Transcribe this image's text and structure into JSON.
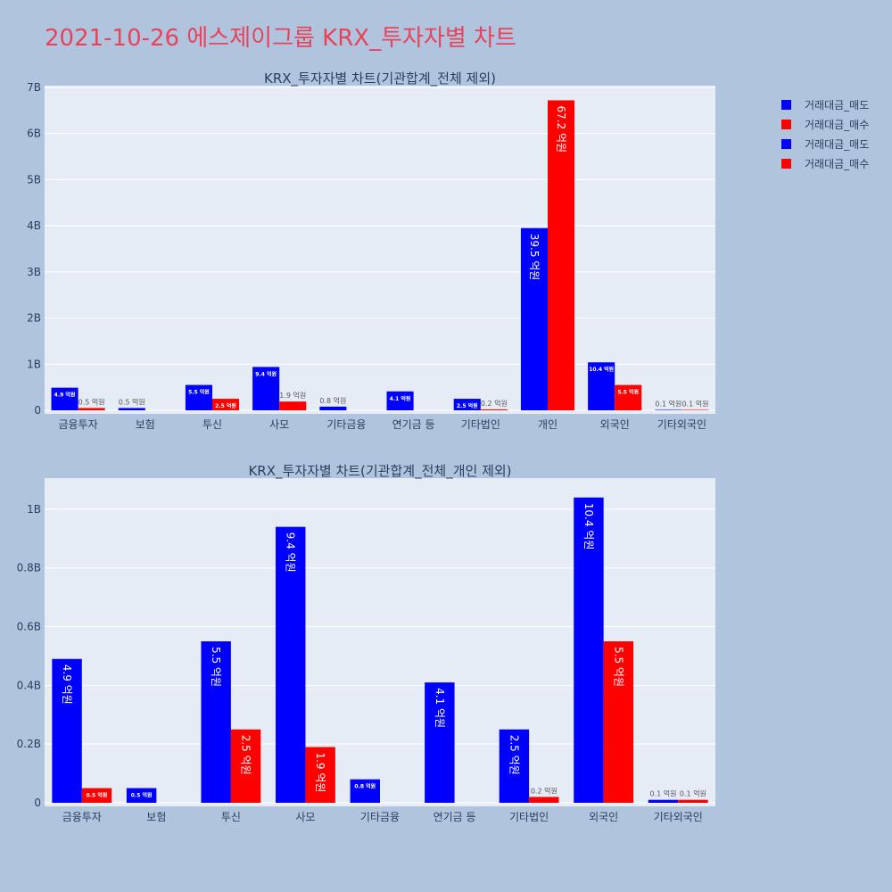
{
  "page": {
    "title": "2021-10-26 에스제이그룹 KRX_투자자별 차트",
    "background": "#b0c4de",
    "title_color": "#e8435a"
  },
  "legend": [
    {
      "label": "거래대금_매도",
      "color": "#0000ff"
    },
    {
      "label": "거래대금_매수",
      "color": "#ff0000"
    },
    {
      "label": "거래대금_매도",
      "color": "#0000ff"
    },
    {
      "label": "거래대금_매수",
      "color": "#ff0000"
    }
  ],
  "chart_data": [
    {
      "type": "bar",
      "title": "KRX_투자자별 차트(기관합계_전체 제외)",
      "categories": [
        "금융투자",
        "보험",
        "투신",
        "사모",
        "기타금융",
        "연기금 등",
        "기타법인",
        "개인",
        "외국인",
        "기타외국인"
      ],
      "ylim": [
        0,
        7000000000
      ],
      "yticks": [
        0,
        1000000000,
        2000000000,
        3000000000,
        4000000000,
        5000000000,
        6000000000,
        7000000000
      ],
      "ytick_labels": [
        "0",
        "1B",
        "2B",
        "3B",
        "4B",
        "5B",
        "6B",
        "7B"
      ],
      "grid": true,
      "series": [
        {
          "name": "거래대금_매도",
          "color": "#0000ff",
          "values": [
            490000000,
            50000000,
            550000000,
            940000000,
            80000000,
            410000000,
            250000000,
            3950000000,
            1040000000,
            10000000
          ],
          "labels": [
            "4.9 억원",
            "0.5 억원",
            "5.5 억원",
            "9.4 억원",
            "0.8 억원",
            "4.1 억원",
            "2.5 억원",
            "39.5 억원",
            "10.4 억원",
            "0.1 억원"
          ]
        },
        {
          "name": "거래대금_매수",
          "color": "#ff0000",
          "values": [
            50000000,
            null,
            250000000,
            190000000,
            null,
            null,
            20000000,
            6720000000,
            550000000,
            10000000
          ],
          "labels": [
            "0.5 억원",
            "",
            "2.5 억원",
            "1.9 억원",
            "",
            "",
            "0.2 억원",
            "67.2 억원",
            "5.5 억원",
            "0.1 억원"
          ]
        }
      ]
    },
    {
      "type": "bar",
      "title": "KRX_투자자별 차트(기관합계_전체_개인 제외)",
      "categories": [
        "금융투자",
        "보험",
        "투신",
        "사모",
        "기타금융",
        "연기금 등",
        "기타법인",
        "외국인",
        "기타외국인"
      ],
      "ylim": [
        0,
        1100000000
      ],
      "yticks": [
        0,
        200000000,
        400000000,
        600000000,
        800000000,
        1000000000
      ],
      "ytick_labels": [
        "0",
        "0.2B",
        "0.4B",
        "0.6B",
        "0.8B",
        "1B"
      ],
      "grid": true,
      "series": [
        {
          "name": "거래대금_매도",
          "color": "#0000ff",
          "values": [
            490000000,
            50000000,
            550000000,
            940000000,
            80000000,
            410000000,
            250000000,
            1040000000,
            10000000
          ],
          "labels": [
            "4.9 억원",
            "0.5 억원",
            "5.5 억원",
            "9.4 억원",
            "0.8 억원",
            "4.1 억원",
            "2.5 억원",
            "10.4 억원",
            "0.1 억원"
          ]
        },
        {
          "name": "거래대금_매수",
          "color": "#ff0000",
          "values": [
            50000000,
            null,
            250000000,
            190000000,
            null,
            null,
            20000000,
            550000000,
            10000000
          ],
          "labels": [
            "0.5 억원",
            "",
            "2.5 억원",
            "1.9 억원",
            "",
            "",
            "0.2 억원",
            "5.5 억원",
            "0.1 억원"
          ]
        }
      ]
    }
  ]
}
